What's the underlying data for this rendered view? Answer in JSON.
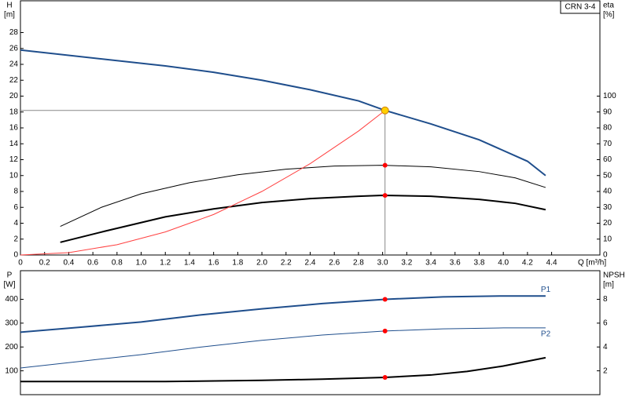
{
  "chart_data": [
    {
      "type": "line",
      "label": "CRN 3-4",
      "y_label": "H",
      "y_unit": "[m]",
      "y2_label": "eta",
      "y2_unit": "[%]",
      "x_label": "Q [m³/h]",
      "xlim": [
        0,
        4.8
      ],
      "ylim": [
        0,
        32
      ],
      "y2lim": [
        0,
        160
      ],
      "grid": false,
      "xticks": [
        0,
        0.2,
        0.4,
        0.6,
        0.8,
        {
          "value": 1,
          "label": "1.0"
        },
        1.2,
        1.4,
        1.6,
        1.8,
        {
          "value": 2,
          "label": "2.0"
        },
        2.2,
        2.4,
        2.6,
        2.8,
        {
          "value": 3,
          "label": "3.0"
        },
        3.2,
        3.4,
        3.6,
        3.8,
        {
          "value": 4,
          "label": "4.0"
        },
        4.2,
        4.4
      ],
      "yticks": [
        0,
        2,
        4,
        6,
        8,
        10,
        12,
        14,
        16,
        18,
        20,
        22,
        24,
        26,
        28
      ],
      "y2ticks": [
        0,
        10,
        20,
        30,
        40,
        50,
        60,
        70,
        80,
        90,
        100
      ],
      "series": [
        {
          "color": "#1f4e8c",
          "width": 2,
          "axis": "y",
          "x": [
            0,
            1.2,
            1.6,
            2.0,
            2.4,
            2.8,
            3.02,
            3.4,
            3.8,
            4.2,
            4.35
          ],
          "values": [
            25.8,
            23.8,
            23.0,
            22.0,
            20.8,
            19.4,
            18.2,
            16.5,
            14.5,
            11.8,
            10
          ]
        },
        {
          "color": "#000000",
          "width": 1,
          "axis": "y2",
          "x": [
            0.33,
            0.67,
            1.0,
            1.4,
            1.8,
            2.2,
            2.6,
            3.0,
            3.4,
            3.8,
            4.1,
            4.35
          ],
          "values": [
            18,
            30,
            38.5,
            45.5,
            50.5,
            54,
            56,
            56.5,
            55.5,
            52.5,
            48.5,
            42.5
          ]
        },
        {
          "color": "#000000",
          "width": 2,
          "axis": "y2",
          "x": [
            0.33,
            0.7,
            1.2,
            1.6,
            2.0,
            2.4,
            2.8,
            3.0,
            3.4,
            3.8,
            4.1,
            4.35
          ],
          "values": [
            8,
            15,
            24,
            29,
            33,
            35.5,
            37,
            37.5,
            37,
            35,
            32.5,
            28.5
          ]
        },
        {
          "color": "#ff4040",
          "width": 1,
          "axis": "y",
          "x": [
            0,
            0.4,
            0.8,
            1.2,
            1.6,
            2.0,
            2.4,
            2.8,
            3.02
          ],
          "values": [
            0,
            0.3,
            1.3,
            2.9,
            5.1,
            8.0,
            11.5,
            15.6,
            18.2
          ]
        }
      ],
      "markers": [
        {
          "x": 3.02,
          "y": 18.2,
          "axis": "y",
          "color": "#ffd000",
          "operating": true
        },
        {
          "x": 3.02,
          "y": 56.5,
          "axis": "y2",
          "color": "#ff0000"
        },
        {
          "x": 3.02,
          "y": 37.5,
          "axis": "y2",
          "color": "#ff0000"
        }
      ]
    },
    {
      "type": "line",
      "y_label": "P",
      "y_unit": "[W]",
      "y2_label": "NPSH",
      "y2_unit": "[m]",
      "xlim": [
        0,
        4.8
      ],
      "ylim": [
        0,
        520
      ],
      "y2lim": [
        0,
        10.4
      ],
      "grid": false,
      "yticks": [
        100,
        200,
        300,
        400
      ],
      "y2ticks": [
        2,
        4,
        6,
        8
      ],
      "series": [
        {
          "name": "P1",
          "color": "#1f4e8c",
          "width": 2,
          "axis": "y",
          "x": [
            0,
            0.5,
            1.0,
            1.5,
            2.0,
            2.5,
            3.02,
            3.5,
            4.0,
            4.35
          ],
          "values": [
            262,
            283,
            305,
            335,
            360,
            382,
            400,
            410,
            414,
            414
          ]
        },
        {
          "name": "P2",
          "color": "#1f4e8c",
          "width": 1,
          "axis": "y",
          "x": [
            0,
            0.5,
            1.0,
            1.5,
            2.0,
            2.5,
            3.02,
            3.5,
            4.0,
            4.35
          ],
          "values": [
            112,
            140,
            168,
            200,
            228,
            250,
            267,
            276,
            280,
            280
          ]
        },
        {
          "color": "#000000",
          "width": 2,
          "axis": "y2",
          "x": [
            0,
            1.2,
            2.0,
            2.5,
            3.02,
            3.4,
            3.7,
            4.0,
            4.35
          ],
          "values": [
            1.1,
            1.1,
            1.2,
            1.3,
            1.45,
            1.65,
            1.95,
            2.4,
            3.1
          ]
        }
      ],
      "markers": [
        {
          "x": 3.02,
          "y": 400,
          "axis": "y",
          "color": "#ff0000"
        },
        {
          "x": 3.02,
          "y": 267,
          "axis": "y",
          "color": "#ff0000"
        },
        {
          "x": 3.02,
          "y": 1.45,
          "axis": "y2",
          "color": "#ff0000"
        }
      ]
    }
  ]
}
